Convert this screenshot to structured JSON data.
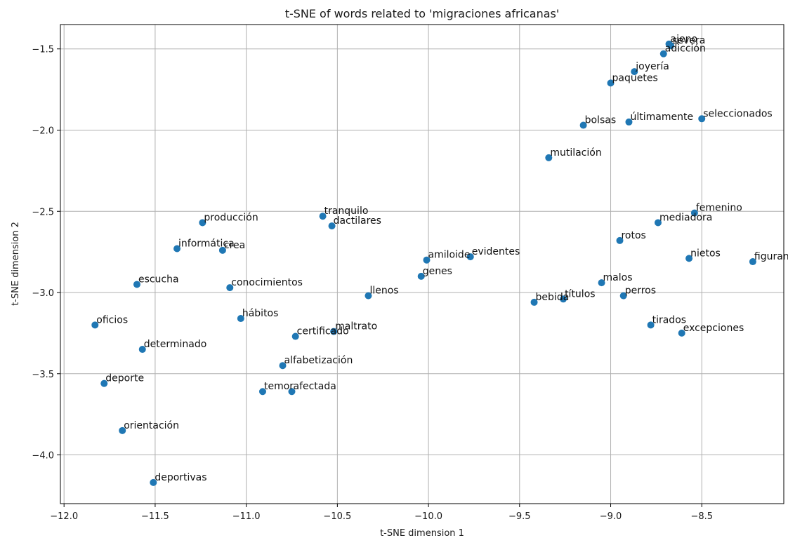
{
  "chart_data": {
    "type": "scatter",
    "title": "t-SNE of words related to 'migraciones africanas'",
    "xlabel": "t-SNE dimension 1",
    "ylabel": "t-SNE dimension 2",
    "xlim": [
      -12.02,
      -8.05
    ],
    "ylim": [
      -4.3,
      -1.35
    ],
    "xticks": [
      -12.0,
      -11.5,
      -11.0,
      -10.5,
      -10.0,
      -9.5,
      -9.0,
      -8.5
    ],
    "xtick_labels": [
      "−12.0",
      "−11.5",
      "−11.0",
      "−10.5",
      "−10.0",
      "−9.5",
      "−9.0",
      "−8.5"
    ],
    "yticks": [
      -4.0,
      -3.5,
      -3.0,
      -2.5,
      -2.0,
      -1.5
    ],
    "ytick_labels": [
      "−4.0",
      "−3.5",
      "−3.0",
      "−2.5",
      "−2.0",
      "−1.5"
    ],
    "grid": true,
    "marker_color": "#1f77b4",
    "points": [
      {
        "label": "ajeno",
        "x": -8.68,
        "y": -1.47
      },
      {
        "label": "severa",
        "x": -8.67,
        "y": -1.48
      },
      {
        "label": "adicción",
        "x": -8.71,
        "y": -1.53
      },
      {
        "label": "joyería",
        "x": -8.87,
        "y": -1.64
      },
      {
        "label": "paquetes",
        "x": -9.0,
        "y": -1.71
      },
      {
        "label": "seleccionados",
        "x": -8.5,
        "y": -1.93
      },
      {
        "label": "últimamente",
        "x": -8.9,
        "y": -1.95
      },
      {
        "label": "bolsas",
        "x": -9.15,
        "y": -1.97
      },
      {
        "label": "mutilación",
        "x": -9.34,
        "y": -2.17
      },
      {
        "label": "femenino",
        "x": -8.54,
        "y": -2.51
      },
      {
        "label": "mediadora",
        "x": -8.74,
        "y": -2.57
      },
      {
        "label": "rotos",
        "x": -8.95,
        "y": -2.68
      },
      {
        "label": "nietos",
        "x": -8.57,
        "y": -2.79
      },
      {
        "label": "figuran",
        "x": -8.22,
        "y": -2.81
      },
      {
        "label": "malos",
        "x": -9.05,
        "y": -2.94
      },
      {
        "label": "perros",
        "x": -8.93,
        "y": -3.02
      },
      {
        "label": "títulos",
        "x": -9.26,
        "y": -3.04
      },
      {
        "label": "bebida",
        "x": -9.42,
        "y": -3.06
      },
      {
        "label": "tirados",
        "x": -8.78,
        "y": -3.2
      },
      {
        "label": "excepciones",
        "x": -8.61,
        "y": -3.25
      },
      {
        "label": "evidentes",
        "x": -9.77,
        "y": -2.78
      },
      {
        "label": "amiloide",
        "x": -10.01,
        "y": -2.8
      },
      {
        "label": "genes",
        "x": -10.04,
        "y": -2.9
      },
      {
        "label": "llenos",
        "x": -10.33,
        "y": -3.02
      },
      {
        "label": "tranquilo",
        "x": -10.58,
        "y": -2.53
      },
      {
        "label": "dactilares",
        "x": -10.53,
        "y": -2.59
      },
      {
        "label": "producción",
        "x": -11.24,
        "y": -2.57
      },
      {
        "label": "informática",
        "x": -11.38,
        "y": -2.73
      },
      {
        "label": "crea",
        "x": -11.13,
        "y": -2.74
      },
      {
        "label": "escucha",
        "x": -11.6,
        "y": -2.95
      },
      {
        "label": "conocimientos",
        "x": -11.09,
        "y": -2.97
      },
      {
        "label": "oficios",
        "x": -11.83,
        "y": -3.2
      },
      {
        "label": "hábitos",
        "x": -11.03,
        "y": -3.16
      },
      {
        "label": "maltrato",
        "x": -10.52,
        "y": -3.24
      },
      {
        "label": "certificado",
        "x": -10.73,
        "y": -3.27
      },
      {
        "label": "determinado",
        "x": -11.57,
        "y": -3.35
      },
      {
        "label": "alfabetización",
        "x": -10.8,
        "y": -3.45
      },
      {
        "label": "deporte",
        "x": -11.78,
        "y": -3.56
      },
      {
        "label": "temor",
        "x": -10.91,
        "y": -3.61
      },
      {
        "label": "afectada",
        "x": -10.75,
        "y": -3.61
      },
      {
        "label": "orientación",
        "x": -11.68,
        "y": -3.85
      },
      {
        "label": "deportivas",
        "x": -11.51,
        "y": -4.17
      }
    ]
  }
}
